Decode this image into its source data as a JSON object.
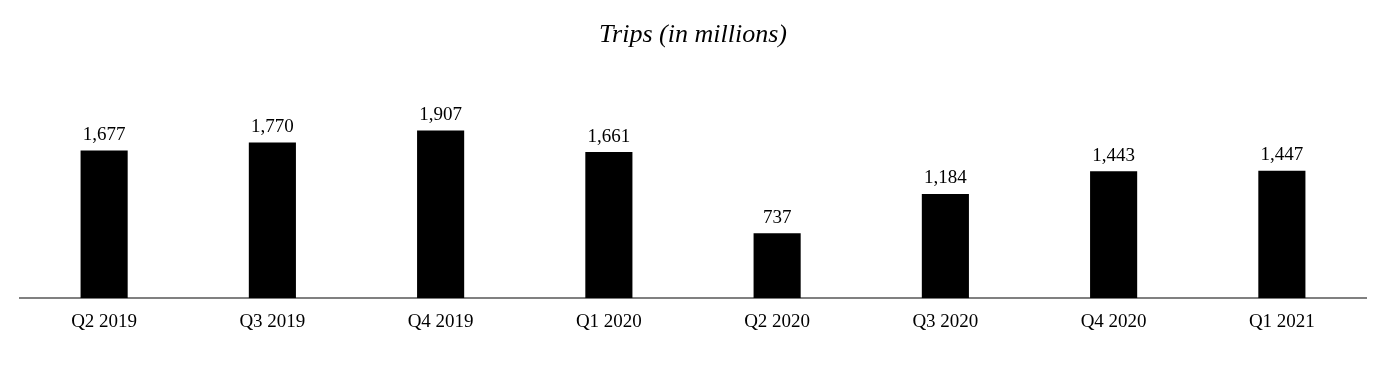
{
  "chart_data": {
    "type": "bar",
    "title": "Trips (in millions)",
    "categories": [
      "Q2 2019",
      "Q3 2019",
      "Q4 2019",
      "Q1 2020",
      "Q2 2020",
      "Q3 2020",
      "Q4 2020",
      "Q1 2021"
    ],
    "values": [
      1677,
      1770,
      1907,
      1661,
      737,
      1184,
      1443,
      1447
    ],
    "value_labels": [
      "1,677",
      "1,770",
      "1,907",
      "1,661",
      "737",
      "1,184",
      "1,443",
      "1,447"
    ],
    "color": "#000000",
    "tick_labels": "x",
    "grid": false,
    "legend": false
  }
}
